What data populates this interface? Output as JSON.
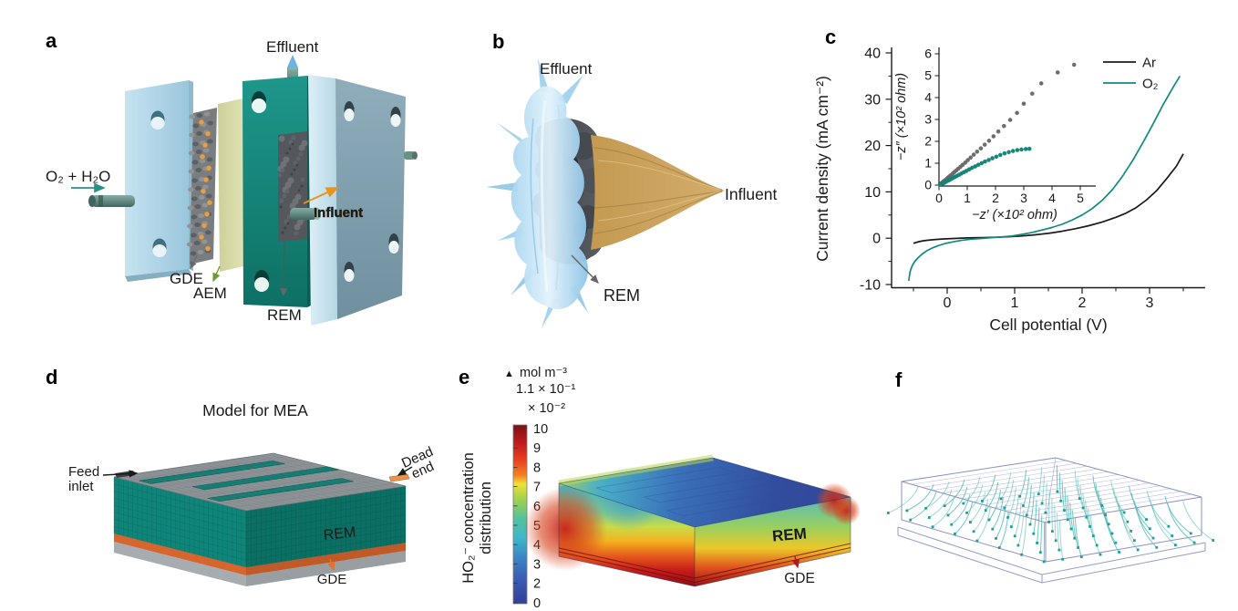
{
  "colors": {
    "accent_teal": "#0f8a7e",
    "chart_black": "#1a1a1a",
    "gray_marker": "#6e6e6e",
    "label_blue": "#5b9bd5",
    "label_orange": "#e8921d",
    "label_tan": "#c79a55",
    "label_olive": "#8aa83a",
    "label_gray": "#7c7f86",
    "title_teal": "#189086",
    "gde_orange": "#e0742f",
    "gde_red": "#b01b1f",
    "plate_blue": "#a9cee0",
    "plate_teal": "#15897e"
  },
  "panels": {
    "a": {
      "letter": "a",
      "labels": {
        "effluent": "Effluent",
        "feed": "O₂ + H₂O",
        "gde": "GDE",
        "aem": "AEM",
        "rem": "REM",
        "influent": "Influent"
      }
    },
    "b": {
      "letter": "b",
      "labels": {
        "effluent": "Effluent",
        "influent": "Influent",
        "rem": "REM"
      }
    },
    "c": {
      "letter": "c"
    },
    "d": {
      "letter": "d",
      "title": "Model for MEA",
      "labels": {
        "feed_line1": "Feed",
        "feed_line2": "inlet",
        "dead_line1": "Dead",
        "dead_line2": "end",
        "rem": "REM",
        "gde": "GDE"
      }
    },
    "e": {
      "letter": "e",
      "colorbar": {
        "marker": "▲",
        "unit": "mol m⁻³",
        "max_value": "1.1 × 10⁻¹",
        "scale": "× 10⁻²",
        "ticks": [
          "10",
          "9",
          "8",
          "7",
          "6",
          "5",
          "4",
          "3",
          "2",
          "0"
        ]
      },
      "axis_label_line1": "HO₂⁻ concentration",
      "axis_label_line2": "distribution",
      "labels": {
        "rem": "REM",
        "gde": "GDE"
      }
    },
    "f": {
      "letter": "f"
    }
  },
  "chart_data": [
    {
      "id": "polarization-curve",
      "type": "line",
      "title": "",
      "xlabel": "Cell potential (V)",
      "ylabel": "Current density (mA cm⁻²)",
      "xlim": [
        -0.82,
        3.78
      ],
      "ylim": [
        -10.8,
        41
      ],
      "xticks": [
        0,
        1,
        2,
        3
      ],
      "xminorticks": [
        -0.5,
        0.5,
        1.5,
        2.5,
        3.5
      ],
      "yticks": [
        -10,
        0,
        10,
        20,
        30,
        40
      ],
      "yminorticks": [
        -5,
        5,
        15,
        25,
        35
      ],
      "grid": false,
      "legend_position": "upper right",
      "legend": [
        {
          "label": "Ar",
          "color": "#1a1a1a"
        },
        {
          "label": "O₂",
          "color": "#0f8a7e"
        }
      ],
      "series": [
        {
          "name": "Ar",
          "color": "#1a1a1a",
          "points": [
            [
              -0.5,
              -1.1
            ],
            [
              -0.42,
              -0.75
            ],
            [
              -0.35,
              -0.55
            ],
            [
              -0.25,
              -0.38
            ],
            [
              -0.15,
              -0.25
            ],
            [
              -0.05,
              -0.15
            ],
            [
              0.1,
              -0.05
            ],
            [
              0.3,
              0.05
            ],
            [
              0.5,
              0.12
            ],
            [
              0.7,
              0.2
            ],
            [
              0.9,
              0.32
            ],
            [
              1.1,
              0.48
            ],
            [
              1.3,
              0.72
            ],
            [
              1.5,
              1.05
            ],
            [
              1.7,
              1.5
            ],
            [
              1.9,
              2.05
            ],
            [
              2.1,
              2.7
            ],
            [
              2.3,
              3.5
            ],
            [
              2.5,
              4.5
            ],
            [
              2.65,
              5.4
            ],
            [
              2.8,
              6.6
            ],
            [
              2.95,
              8.2
            ],
            [
              3.1,
              10.2
            ],
            [
              3.25,
              12.8
            ],
            [
              3.4,
              15.6
            ],
            [
              3.5,
              18.2
            ]
          ]
        },
        {
          "name": "O₂",
          "color": "#0f8a7e",
          "points": [
            [
              -0.57,
              -9.2
            ],
            [
              -0.55,
              -7.2
            ],
            [
              -0.52,
              -6.0
            ],
            [
              -0.48,
              -5.0
            ],
            [
              -0.43,
              -4.2
            ],
            [
              -0.37,
              -3.4
            ],
            [
              -0.3,
              -2.7
            ],
            [
              -0.22,
              -2.1
            ],
            [
              -0.13,
              -1.6
            ],
            [
              -0.03,
              -1.15
            ],
            [
              0.08,
              -0.8
            ],
            [
              0.2,
              -0.5
            ],
            [
              0.35,
              -0.22
            ],
            [
              0.5,
              -0.05
            ],
            [
              0.65,
              0.1
            ],
            [
              0.8,
              0.25
            ],
            [
              0.95,
              0.45
            ],
            [
              1.1,
              0.8
            ],
            [
              1.25,
              1.2
            ],
            [
              1.4,
              1.75
            ],
            [
              1.55,
              2.3
            ],
            [
              1.7,
              3.0
            ],
            [
              1.85,
              3.9
            ],
            [
              2.0,
              5.0
            ],
            [
              2.15,
              6.4
            ],
            [
              2.3,
              8.2
            ],
            [
              2.45,
              10.5
            ],
            [
              2.6,
              13.4
            ],
            [
              2.75,
              16.8
            ],
            [
              2.9,
              20.6
            ],
            [
              3.05,
              24.6
            ],
            [
              3.2,
              28.8
            ],
            [
              3.35,
              32.6
            ],
            [
              3.45,
              35.0
            ]
          ]
        }
      ]
    },
    {
      "id": "eis-nyquist-inset",
      "type": "scatter",
      "xlabel": "−z′ (×10² ohm)",
      "ylabel": "−z″ (×10² ohm)",
      "xlim": [
        -0.2,
        5.55
      ],
      "ylim": [
        -0.3,
        6.3
      ],
      "xticks": [
        0,
        1,
        2,
        3,
        4,
        5
      ],
      "yticks": [
        0,
        1,
        2,
        3,
        4,
        5,
        6
      ],
      "grid": false,
      "series": [
        {
          "name": "Ar",
          "color": "#6e6e6e",
          "points": [
            [
              0.04,
              0.04
            ],
            [
              0.08,
              0.08
            ],
            [
              0.12,
              0.12
            ],
            [
              0.16,
              0.17
            ],
            [
              0.21,
              0.22
            ],
            [
              0.26,
              0.27
            ],
            [
              0.31,
              0.33
            ],
            [
              0.36,
              0.39
            ],
            [
              0.42,
              0.45
            ],
            [
              0.48,
              0.52
            ],
            [
              0.54,
              0.59
            ],
            [
              0.61,
              0.67
            ],
            [
              0.68,
              0.75
            ],
            [
              0.76,
              0.84
            ],
            [
              0.84,
              0.93
            ],
            [
              0.93,
              1.03
            ],
            [
              1.02,
              1.14
            ],
            [
              1.12,
              1.26
            ],
            [
              1.23,
              1.39
            ],
            [
              1.35,
              1.53
            ],
            [
              1.48,
              1.68
            ],
            [
              1.62,
              1.85
            ],
            [
              1.77,
              2.03
            ],
            [
              1.93,
              2.23
            ],
            [
              2.1,
              2.45
            ],
            [
              2.3,
              2.7
            ],
            [
              2.52,
              2.98
            ],
            [
              2.76,
              3.3
            ],
            [
              3.0,
              3.72
            ],
            [
              3.3,
              4.18
            ],
            [
              3.62,
              4.65
            ],
            [
              4.2,
              5.15
            ],
            [
              4.78,
              5.5
            ]
          ]
        },
        {
          "name": "O₂",
          "color": "#0f8a7e",
          "points": [
            [
              0.04,
              0.02
            ],
            [
              0.09,
              0.05
            ],
            [
              0.14,
              0.08
            ],
            [
              0.19,
              0.11
            ],
            [
              0.24,
              0.15
            ],
            [
              0.3,
              0.19
            ],
            [
              0.36,
              0.23
            ],
            [
              0.42,
              0.27
            ],
            [
              0.49,
              0.32
            ],
            [
              0.56,
              0.37
            ],
            [
              0.63,
              0.42
            ],
            [
              0.71,
              0.47
            ],
            [
              0.79,
              0.53
            ],
            [
              0.88,
              0.59
            ],
            [
              0.97,
              0.65
            ],
            [
              1.07,
              0.72
            ],
            [
              1.17,
              0.79
            ],
            [
              1.28,
              0.86
            ],
            [
              1.39,
              0.93
            ],
            [
              1.51,
              1.0
            ],
            [
              1.63,
              1.08
            ],
            [
              1.76,
              1.15
            ],
            [
              1.89,
              1.23
            ],
            [
              2.03,
              1.3
            ],
            [
              2.17,
              1.38
            ],
            [
              2.32,
              1.45
            ],
            [
              2.47,
              1.51
            ],
            [
              2.62,
              1.56
            ],
            [
              2.77,
              1.6
            ],
            [
              2.92,
              1.63
            ],
            [
              3.07,
              1.65
            ],
            [
              3.2,
              1.66
            ]
          ]
        }
      ]
    }
  ]
}
